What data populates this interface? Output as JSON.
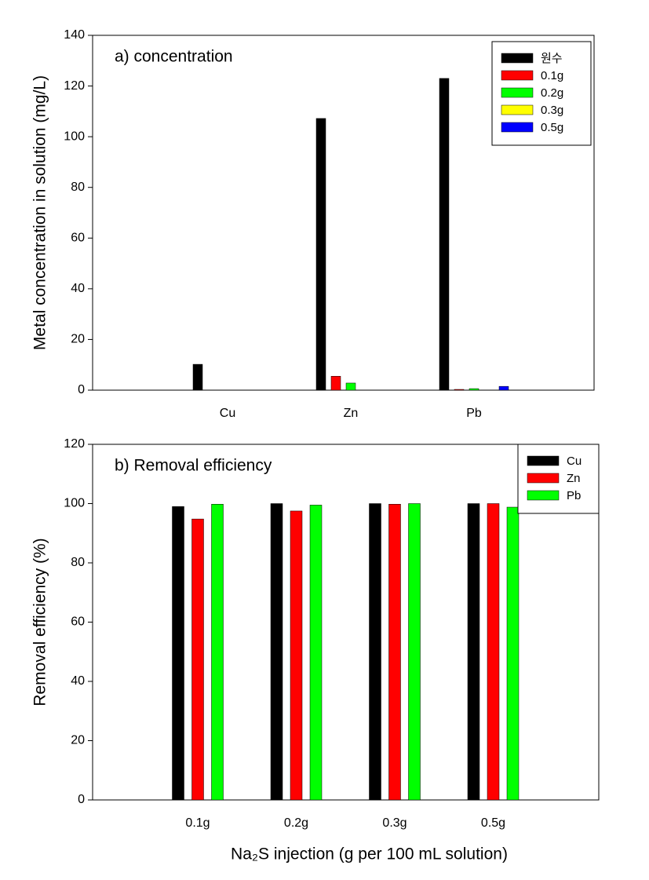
{
  "chart_data": [
    {
      "type": "bar",
      "annotation": "a) concentration",
      "y_label": "Metal concentration in solution (mg/L)",
      "categories": [
        "Cu",
        "Zn",
        "Pb"
      ],
      "series": [
        {
          "name": "원수",
          "color": "#000000",
          "values": [
            10.2,
            107.2,
            123
          ]
        },
        {
          "name": "0.1g",
          "color": "#ff0000",
          "values": [
            0,
            5.5,
            0.3
          ]
        },
        {
          "name": "0.2g",
          "color": "#00ff00",
          "values": [
            0,
            2.8,
            0.6
          ]
        },
        {
          "name": "0.3g",
          "color": "#ffff00",
          "values": [
            0,
            0,
            0
          ]
        },
        {
          "name": "0.5g",
          "color": "#0000ff",
          "values": [
            0,
            0,
            1.5
          ]
        }
      ],
      "ylim": [
        0,
        140
      ],
      "yticks": [
        0,
        20,
        40,
        60,
        80,
        100,
        120,
        140
      ],
      "legend": "top-right"
    },
    {
      "type": "bar",
      "annotation": "b) Removal efficiency",
      "y_label": "Removal efficiency (%)",
      "x_label": "Na₂S injection (g per 100 mL solution)",
      "categories": [
        "0.1g",
        "0.2g",
        "0.3g",
        "0.5g"
      ],
      "series": [
        {
          "name": "Cu",
          "color": "#000000",
          "values": [
            99,
            100,
            100,
            100
          ]
        },
        {
          "name": "Zn",
          "color": "#ff0000",
          "values": [
            94.8,
            97.5,
            99.8,
            100
          ]
        },
        {
          "name": "Pb",
          "color": "#00ff00",
          "values": [
            99.8,
            99.5,
            100,
            98.8
          ]
        }
      ],
      "ylim": [
        0,
        120
      ],
      "yticks": [
        0,
        20,
        40,
        60,
        80,
        100,
        120
      ],
      "legend": "top-right"
    }
  ]
}
